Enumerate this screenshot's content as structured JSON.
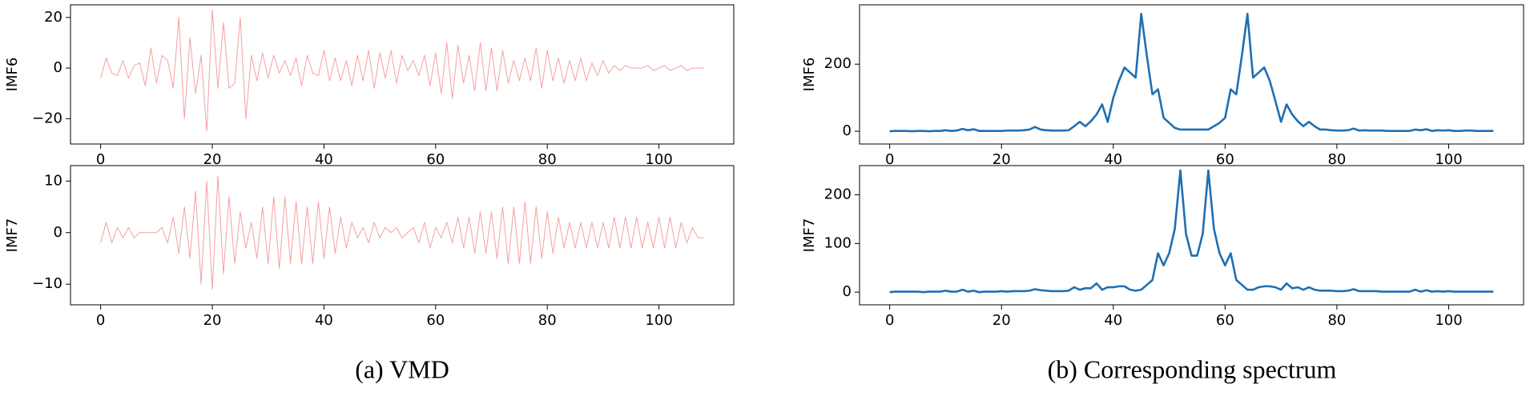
{
  "chart_data": [
    {
      "type": "line",
      "y_label": "IMF6",
      "x": [
        0,
        1,
        2,
        3,
        4,
        5,
        6,
        7,
        8,
        9,
        10,
        11,
        12,
        13,
        14,
        15,
        16,
        17,
        18,
        19,
        20,
        21,
        22,
        23,
        24,
        25,
        26,
        27,
        28,
        29,
        30,
        31,
        32,
        33,
        34,
        35,
        36,
        37,
        38,
        39,
        40,
        41,
        42,
        43,
        44,
        45,
        46,
        47,
        48,
        49,
        50,
        51,
        52,
        53,
        54,
        55,
        56,
        57,
        58,
        59,
        60,
        61,
        62,
        63,
        64,
        65,
        66,
        67,
        68,
        69,
        70,
        71,
        72,
        73,
        74,
        75,
        76,
        77,
        78,
        79,
        80,
        81,
        82,
        83,
        84,
        85,
        86,
        87,
        88,
        89,
        90,
        91,
        92,
        93,
        94,
        95,
        96,
        97,
        98,
        99,
        100,
        101,
        102,
        103,
        104,
        105,
        106,
        107,
        108
      ],
      "series": [
        {
          "name": "IMF6",
          "color": "#f4a0a0",
          "values": [
            -4,
            4,
            -2,
            -3,
            3,
            -4,
            1,
            2,
            -7,
            8,
            -6,
            5,
            3,
            -8,
            20,
            -20,
            12,
            -10,
            5,
            -25,
            23,
            -8,
            18,
            -8,
            -6,
            20,
            -20,
            5,
            -5,
            6,
            -4,
            5,
            -2,
            3,
            -3,
            4,
            -7,
            5,
            -2,
            -3,
            7,
            -5,
            4,
            -5,
            3,
            -7,
            5,
            -5,
            7,
            -8,
            6,
            -4,
            7,
            -6,
            5,
            -1,
            3,
            -3,
            5,
            -7,
            6,
            -10,
            10,
            -12,
            9,
            -6,
            5,
            -9,
            10,
            -9,
            8,
            -9,
            7,
            -6,
            3,
            -5,
            4,
            -5,
            8,
            -8,
            7,
            -5,
            4,
            -6,
            3,
            -5,
            4,
            -5,
            2,
            -3,
            3,
            -2,
            1,
            -1,
            1,
            0,
            0,
            0,
            1,
            -1,
            0,
            1,
            -1,
            0,
            1,
            -1,
            0,
            0,
            0
          ]
        }
      ],
      "xlim": [
        -5.4,
        113.4
      ],
      "ylim": [
        -30,
        25
      ],
      "xticks": [
        0,
        20,
        40,
        60,
        80,
        100
      ],
      "yticks": [
        {
          "value": -20,
          "label": "−20"
        },
        0,
        20
      ]
    },
    {
      "type": "line",
      "y_label": "IMF6",
      "x": [
        0,
        1,
        2,
        3,
        4,
        5,
        6,
        7,
        8,
        9,
        10,
        11,
        12,
        13,
        14,
        15,
        16,
        17,
        18,
        19,
        20,
        21,
        22,
        23,
        24,
        25,
        26,
        27,
        28,
        29,
        30,
        31,
        32,
        33,
        34,
        35,
        36,
        37,
        38,
        39,
        40,
        41,
        42,
        43,
        44,
        45,
        46,
        47,
        48,
        49,
        50,
        51,
        52,
        53,
        54,
        55,
        56,
        57,
        58,
        59,
        60,
        61,
        62,
        63,
        64,
        65,
        66,
        67,
        68,
        69,
        70,
        71,
        72,
        73,
        74,
        75,
        76,
        77,
        78,
        79,
        80,
        81,
        82,
        83,
        84,
        85,
        86,
        87,
        88,
        89,
        90,
        91,
        92,
        93,
        94,
        95,
        96,
        97,
        98,
        99,
        100,
        101,
        102,
        103,
        104,
        105,
        106,
        107,
        108
      ],
      "series": [
        {
          "name": "IMF6",
          "color": "#1f6fb2",
          "values": [
            0,
            1,
            1,
            1,
            0,
            1,
            1,
            0,
            1,
            1,
            3,
            1,
            2,
            7,
            3,
            6,
            1,
            1,
            1,
            1,
            1,
            2,
            2,
            2,
            3,
            5,
            13,
            5,
            3,
            2,
            2,
            2,
            3,
            15,
            28,
            15,
            30,
            50,
            80,
            28,
            100,
            150,
            190,
            175,
            160,
            350,
            225,
            110,
            125,
            40,
            25,
            10,
            5,
            5,
            5,
            5,
            5,
            5,
            15,
            25,
            40,
            125,
            110,
            225,
            350,
            160,
            175,
            190,
            150,
            90,
            28,
            80,
            50,
            30,
            15,
            28,
            15,
            5,
            5,
            3,
            2,
            2,
            3,
            8,
            2,
            3,
            2,
            2,
            2,
            1,
            1,
            1,
            1,
            1,
            5,
            3,
            6,
            1,
            3,
            2,
            3,
            1,
            1,
            2,
            2,
            1,
            1,
            1,
            1
          ]
        }
      ],
      "xlim": [
        -5.4,
        113.4
      ],
      "ylim": [
        -38,
        377
      ],
      "xticks": [
        0,
        20,
        40,
        60,
        80,
        100
      ],
      "yticks": [
        0,
        200
      ]
    },
    {
      "type": "line",
      "y_label": "IMF7",
      "x": [
        0,
        1,
        2,
        3,
        4,
        5,
        6,
        7,
        8,
        9,
        10,
        11,
        12,
        13,
        14,
        15,
        16,
        17,
        18,
        19,
        20,
        21,
        22,
        23,
        24,
        25,
        26,
        27,
        28,
        29,
        30,
        31,
        32,
        33,
        34,
        35,
        36,
        37,
        38,
        39,
        40,
        41,
        42,
        43,
        44,
        45,
        46,
        47,
        48,
        49,
        50,
        51,
        52,
        53,
        54,
        55,
        56,
        57,
        58,
        59,
        60,
        61,
        62,
        63,
        64,
        65,
        66,
        67,
        68,
        69,
        70,
        71,
        72,
        73,
        74,
        75,
        76,
        77,
        78,
        79,
        80,
        81,
        82,
        83,
        84,
        85,
        86,
        87,
        88,
        89,
        90,
        91,
        92,
        93,
        94,
        95,
        96,
        97,
        98,
        99,
        100,
        101,
        102,
        103,
        104,
        105,
        106,
        107,
        108
      ],
      "series": [
        {
          "name": "IMF7",
          "color": "#f4a0a0",
          "values": [
            -2,
            2,
            -2,
            1,
            -1,
            1,
            -1,
            0,
            0,
            0,
            0,
            1,
            -2,
            3,
            -4,
            5,
            -5,
            8,
            -10,
            10,
            -11,
            11,
            -8,
            7,
            -6,
            4,
            -3,
            2,
            -5,
            5,
            -6,
            7,
            -7,
            7,
            -6,
            6,
            -6,
            5,
            -6,
            6,
            -5,
            5,
            -4,
            3,
            -3,
            2,
            -1,
            1,
            -2,
            2,
            -1,
            1,
            0,
            1,
            -1,
            0,
            1,
            -2,
            2,
            -3,
            1,
            -1,
            2,
            -2,
            3,
            -3,
            3,
            -4,
            4,
            -4,
            4,
            -5,
            5,
            -6,
            5,
            -6,
            6,
            -6,
            5,
            -5,
            4,
            -4,
            3,
            -3,
            2,
            -3,
            2,
            -3,
            2,
            -3,
            2,
            -3,
            3,
            -3,
            3,
            -3,
            3,
            -3,
            2,
            -3,
            3,
            -3,
            3,
            -3,
            2,
            -2,
            1,
            -1,
            -1
          ]
        }
      ],
      "xlim": [
        -5.4,
        113.4
      ],
      "ylim": [
        -14,
        13
      ],
      "xticks": [
        0,
        20,
        40,
        60,
        80,
        100
      ],
      "yticks": [
        {
          "value": -10,
          "label": "−10"
        },
        0,
        10
      ]
    },
    {
      "type": "line",
      "y_label": "IMF7",
      "x": [
        0,
        1,
        2,
        3,
        4,
        5,
        6,
        7,
        8,
        9,
        10,
        11,
        12,
        13,
        14,
        15,
        16,
        17,
        18,
        19,
        20,
        21,
        22,
        23,
        24,
        25,
        26,
        27,
        28,
        29,
        30,
        31,
        32,
        33,
        34,
        35,
        36,
        37,
        38,
        39,
        40,
        41,
        42,
        43,
        44,
        45,
        46,
        47,
        48,
        49,
        50,
        51,
        52,
        53,
        54,
        55,
        56,
        57,
        58,
        59,
        60,
        61,
        62,
        63,
        64,
        65,
        66,
        67,
        68,
        69,
        70,
        71,
        72,
        73,
        74,
        75,
        76,
        77,
        78,
        79,
        80,
        81,
        82,
        83,
        84,
        85,
        86,
        87,
        88,
        89,
        90,
        91,
        92,
        93,
        94,
        95,
        96,
        97,
        98,
        99,
        100,
        101,
        102,
        103,
        104,
        105,
        106,
        107,
        108
      ],
      "series": [
        {
          "name": "IMF7",
          "color": "#1f6fb2",
          "values": [
            0,
            1,
            1,
            1,
            1,
            1,
            0,
            1,
            1,
            1,
            3,
            1,
            1,
            5,
            1,
            3,
            0,
            1,
            1,
            1,
            2,
            1,
            2,
            2,
            2,
            3,
            6,
            4,
            3,
            2,
            2,
            2,
            3,
            10,
            5,
            8,
            8,
            18,
            5,
            10,
            10,
            12,
            12,
            5,
            3,
            5,
            15,
            25,
            80,
            55,
            80,
            130,
            250,
            120,
            75,
            75,
            120,
            250,
            130,
            80,
            55,
            80,
            25,
            15,
            5,
            5,
            10,
            12,
            12,
            10,
            5,
            18,
            8,
            10,
            5,
            10,
            5,
            3,
            3,
            3,
            2,
            2,
            3,
            6,
            2,
            2,
            2,
            2,
            1,
            1,
            1,
            1,
            1,
            1,
            5,
            1,
            4,
            1,
            2,
            1,
            2,
            1,
            1,
            1,
            1,
            1,
            1,
            1,
            1
          ]
        }
      ],
      "xlim": [
        -5.4,
        113.4
      ],
      "ylim": [
        -26,
        260
      ],
      "xticks": [
        0,
        20,
        40,
        60,
        80,
        100
      ],
      "yticks": [
        0,
        100,
        200
      ]
    }
  ],
  "captions": [
    "(a) VMD",
    "(b) Corresponding spectrum"
  ]
}
